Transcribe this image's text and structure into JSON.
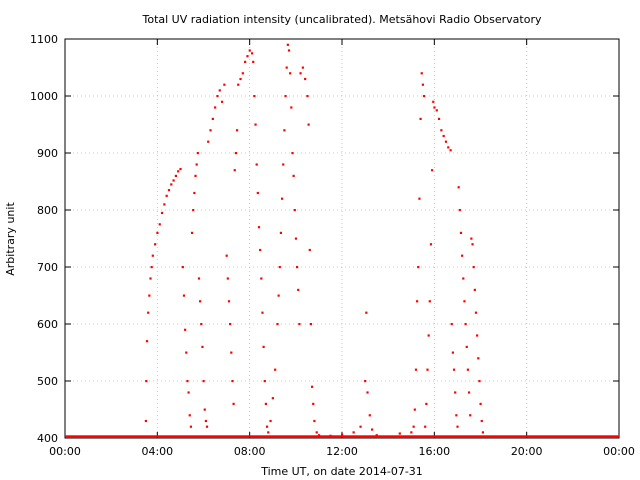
{
  "chart_data": {
    "type": "scatter",
    "title": "Total UV radiation intensity (uncalibrated). Metsähovi Radio Observatory",
    "xlabel": "Time UT, on date 2014-07-31",
    "ylabel": "Arbitrary unit",
    "xlim": [
      0,
      24
    ],
    "ylim": [
      400,
      1100
    ],
    "x_ticks": [
      0,
      4,
      8,
      12,
      16,
      20,
      24
    ],
    "x_tick_labels": [
      "00:00",
      "04:00",
      "08:00",
      "12:00",
      "16:00",
      "20:00",
      "00:00"
    ],
    "y_ticks": [
      400,
      500,
      600,
      700,
      800,
      900,
      1000,
      1100
    ],
    "y_tick_labels": [
      "400",
      "500",
      "600",
      "700",
      "800",
      "900",
      "1000",
      "1100"
    ],
    "grid": true,
    "marker_color": "#ff0000",
    "baseline_value": 403,
    "series": [
      {
        "points": [
          [
            3.5,
            430
          ],
          [
            3.52,
            500
          ],
          [
            3.55,
            570
          ],
          [
            3.6,
            620
          ],
          [
            3.65,
            650
          ],
          [
            3.7,
            680
          ],
          [
            3.75,
            700
          ],
          [
            3.8,
            720
          ],
          [
            3.9,
            740
          ],
          [
            4.0,
            760
          ],
          [
            4.1,
            775
          ],
          [
            4.2,
            795
          ],
          [
            4.3,
            810
          ],
          [
            4.4,
            825
          ],
          [
            4.5,
            835
          ],
          [
            4.6,
            845
          ],
          [
            4.7,
            852
          ],
          [
            4.8,
            860
          ],
          [
            4.9,
            868
          ],
          [
            5.0,
            872
          ],
          [
            5.1,
            700
          ],
          [
            5.15,
            650
          ],
          [
            5.2,
            590
          ],
          [
            5.25,
            550
          ],
          [
            5.3,
            500
          ],
          [
            5.35,
            480
          ],
          [
            5.4,
            440
          ],
          [
            5.45,
            420
          ],
          [
            5.5,
            760
          ],
          [
            5.55,
            800
          ],
          [
            5.6,
            830
          ],
          [
            5.65,
            860
          ],
          [
            5.7,
            880
          ],
          [
            5.75,
            900
          ],
          [
            5.8,
            680
          ],
          [
            5.85,
            640
          ],
          [
            5.9,
            600
          ],
          [
            5.95,
            560
          ],
          [
            6.0,
            500
          ],
          [
            6.05,
            450
          ],
          [
            6.1,
            430
          ],
          [
            6.15,
            420
          ],
          [
            6.2,
            920
          ],
          [
            6.3,
            940
          ],
          [
            6.4,
            960
          ],
          [
            6.5,
            980
          ],
          [
            6.6,
            1000
          ],
          [
            6.7,
            1010
          ],
          [
            6.8,
            990
          ],
          [
            6.9,
            1020
          ],
          [
            7.0,
            720
          ],
          [
            7.05,
            680
          ],
          [
            7.1,
            640
          ],
          [
            7.15,
            600
          ],
          [
            7.2,
            550
          ],
          [
            7.25,
            500
          ],
          [
            7.3,
            460
          ],
          [
            7.35,
            870
          ],
          [
            7.4,
            900
          ],
          [
            7.45,
            940
          ],
          [
            7.5,
            1020
          ],
          [
            7.6,
            1030
          ],
          [
            7.7,
            1040
          ],
          [
            7.8,
            1060
          ],
          [
            7.9,
            1070
          ],
          [
            8.0,
            1080
          ],
          [
            8.1,
            1075
          ],
          [
            8.15,
            1060
          ],
          [
            8.2,
            1000
          ],
          [
            8.25,
            950
          ],
          [
            8.3,
            880
          ],
          [
            8.35,
            830
          ],
          [
            8.4,
            770
          ],
          [
            8.45,
            730
          ],
          [
            8.5,
            680
          ],
          [
            8.55,
            620
          ],
          [
            8.6,
            560
          ],
          [
            8.65,
            500
          ],
          [
            8.7,
            460
          ],
          [
            8.75,
            420
          ],
          [
            8.8,
            410
          ],
          [
            8.9,
            430
          ],
          [
            9.0,
            470
          ],
          [
            9.1,
            520
          ],
          [
            9.2,
            600
          ],
          [
            9.25,
            650
          ],
          [
            9.3,
            700
          ],
          [
            9.35,
            760
          ],
          [
            9.4,
            820
          ],
          [
            9.45,
            880
          ],
          [
            9.5,
            940
          ],
          [
            9.55,
            1000
          ],
          [
            9.6,
            1050
          ],
          [
            9.65,
            1090
          ],
          [
            9.7,
            1080
          ],
          [
            9.75,
            1040
          ],
          [
            9.8,
            980
          ],
          [
            9.85,
            900
          ],
          [
            9.9,
            860
          ],
          [
            9.95,
            800
          ],
          [
            10.0,
            750
          ],
          [
            10.05,
            700
          ],
          [
            10.1,
            660
          ],
          [
            10.15,
            600
          ],
          [
            10.2,
            1040
          ],
          [
            10.3,
            1050
          ],
          [
            10.4,
            1030
          ],
          [
            10.5,
            1000
          ],
          [
            10.55,
            950
          ],
          [
            10.6,
            730
          ],
          [
            10.65,
            600
          ],
          [
            10.7,
            490
          ],
          [
            10.75,
            460
          ],
          [
            10.8,
            430
          ],
          [
            10.9,
            410
          ],
          [
            11.0,
            405
          ],
          [
            11.5,
            404
          ],
          [
            12.0,
            406
          ],
          [
            12.5,
            410
          ],
          [
            12.8,
            420
          ],
          [
            13.0,
            500
          ],
          [
            13.05,
            620
          ],
          [
            13.1,
            480
          ],
          [
            13.2,
            440
          ],
          [
            13.3,
            415
          ],
          [
            13.5,
            405
          ],
          [
            14.5,
            408
          ],
          [
            15.0,
            410
          ],
          [
            15.1,
            420
          ],
          [
            15.15,
            450
          ],
          [
            15.2,
            520
          ],
          [
            15.25,
            640
          ],
          [
            15.3,
            700
          ],
          [
            15.35,
            820
          ],
          [
            15.4,
            960
          ],
          [
            15.45,
            1040
          ],
          [
            15.5,
            1020
          ],
          [
            15.55,
            1000
          ],
          [
            15.6,
            420
          ],
          [
            15.65,
            460
          ],
          [
            15.7,
            520
          ],
          [
            15.75,
            580
          ],
          [
            15.8,
            640
          ],
          [
            15.85,
            740
          ],
          [
            15.9,
            870
          ],
          [
            15.95,
            990
          ],
          [
            16.0,
            980
          ],
          [
            16.1,
            975
          ],
          [
            16.2,
            960
          ],
          [
            16.3,
            940
          ],
          [
            16.4,
            930
          ],
          [
            16.5,
            920
          ],
          [
            16.6,
            910
          ],
          [
            16.7,
            905
          ],
          [
            16.75,
            600
          ],
          [
            16.8,
            550
          ],
          [
            16.85,
            520
          ],
          [
            16.9,
            480
          ],
          [
            16.95,
            440
          ],
          [
            17.0,
            420
          ],
          [
            17.05,
            840
          ],
          [
            17.1,
            800
          ],
          [
            17.15,
            760
          ],
          [
            17.2,
            720
          ],
          [
            17.25,
            680
          ],
          [
            17.3,
            640
          ],
          [
            17.35,
            600
          ],
          [
            17.4,
            560
          ],
          [
            17.45,
            520
          ],
          [
            17.5,
            480
          ],
          [
            17.55,
            440
          ],
          [
            17.6,
            750
          ],
          [
            17.65,
            740
          ],
          [
            17.7,
            700
          ],
          [
            17.75,
            660
          ],
          [
            17.8,
            620
          ],
          [
            17.85,
            580
          ],
          [
            17.9,
            540
          ],
          [
            17.95,
            500
          ],
          [
            18.0,
            460
          ],
          [
            18.05,
            430
          ],
          [
            18.1,
            410
          ]
        ]
      }
    ]
  }
}
